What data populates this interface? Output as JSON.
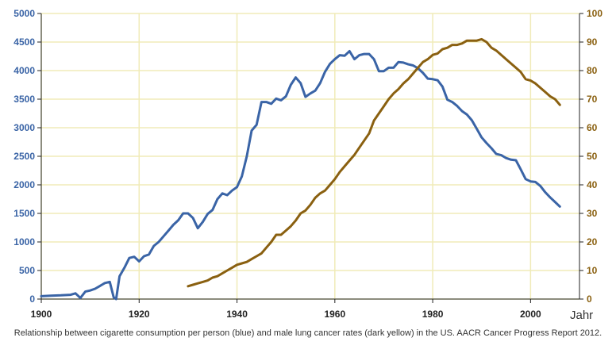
{
  "chart_data": {
    "type": "line",
    "title": "",
    "caption": "Relationship between cigarette consumption per person (blue) and male lung cancer rates (dark yellow) in the US. AACR Cancer Progress Report 2012.",
    "x_unit_label": "Jahr",
    "xlim": [
      1900,
      2010
    ],
    "x_ticks": [
      1900,
      1920,
      1940,
      1960,
      1980,
      2000
    ],
    "y_left": {
      "lim": [
        0,
        5000
      ],
      "ticks": [
        0,
        500,
        1000,
        1500,
        2000,
        2500,
        3000,
        3500,
        4000,
        4500,
        5000
      ],
      "color": "#3a64a6"
    },
    "y_right": {
      "lim": [
        0,
        100
      ],
      "ticks": [
        0,
        10,
        20,
        30,
        40,
        50,
        60,
        70,
        80,
        90,
        100
      ],
      "color": "#8a6010"
    },
    "grid": true,
    "grid_color": "#f0ebb8",
    "axis_color": "#222222",
    "series": [
      {
        "axis": "left",
        "color": "#3a64a6",
        "points": [
          [
            1900,
            50
          ],
          [
            1902,
            60
          ],
          [
            1904,
            65
          ],
          [
            1906,
            75
          ],
          [
            1907,
            100
          ],
          [
            1908,
            20
          ],
          [
            1909,
            130
          ],
          [
            1910,
            150
          ],
          [
            1911,
            180
          ],
          [
            1912,
            230
          ],
          [
            1913,
            280
          ],
          [
            1914,
            300
          ],
          [
            1914.8,
            30
          ],
          [
            1915.3,
            0
          ],
          [
            1916,
            400
          ],
          [
            1917,
            550
          ],
          [
            1918,
            720
          ],
          [
            1919,
            740
          ],
          [
            1920,
            660
          ],
          [
            1921,
            750
          ],
          [
            1922,
            780
          ],
          [
            1923,
            930
          ],
          [
            1924,
            1000
          ],
          [
            1925,
            1100
          ],
          [
            1926,
            1200
          ],
          [
            1927,
            1300
          ],
          [
            1928,
            1380
          ],
          [
            1929,
            1500
          ],
          [
            1930,
            1500
          ],
          [
            1931,
            1420
          ],
          [
            1932,
            1240
          ],
          [
            1933,
            1350
          ],
          [
            1934,
            1490
          ],
          [
            1935,
            1560
          ],
          [
            1936,
            1750
          ],
          [
            1937,
            1850
          ],
          [
            1938,
            1820
          ],
          [
            1939,
            1900
          ],
          [
            1940,
            1960
          ],
          [
            1941,
            2150
          ],
          [
            1942,
            2500
          ],
          [
            1943,
            2950
          ],
          [
            1944,
            3050
          ],
          [
            1945,
            3450
          ],
          [
            1946,
            3450
          ],
          [
            1947,
            3420
          ],
          [
            1948,
            3510
          ],
          [
            1949,
            3480
          ],
          [
            1950,
            3550
          ],
          [
            1951,
            3750
          ],
          [
            1952,
            3880
          ],
          [
            1953,
            3780
          ],
          [
            1954,
            3540
          ],
          [
            1955,
            3600
          ],
          [
            1956,
            3650
          ],
          [
            1957,
            3780
          ],
          [
            1958,
            3980
          ],
          [
            1959,
            4120
          ],
          [
            1960,
            4200
          ],
          [
            1961,
            4270
          ],
          [
            1962,
            4260
          ],
          [
            1963,
            4340
          ],
          [
            1964,
            4200
          ],
          [
            1965,
            4270
          ],
          [
            1966,
            4290
          ],
          [
            1967,
            4290
          ],
          [
            1968,
            4200
          ],
          [
            1969,
            3990
          ],
          [
            1970,
            3990
          ],
          [
            1971,
            4050
          ],
          [
            1972,
            4050
          ],
          [
            1973,
            4150
          ],
          [
            1974,
            4140
          ],
          [
            1975,
            4110
          ],
          [
            1976,
            4090
          ],
          [
            1977,
            4040
          ],
          [
            1978,
            3960
          ],
          [
            1979,
            3860
          ],
          [
            1980,
            3850
          ],
          [
            1981,
            3830
          ],
          [
            1982,
            3720
          ],
          [
            1983,
            3490
          ],
          [
            1984,
            3450
          ],
          [
            1985,
            3380
          ],
          [
            1986,
            3290
          ],
          [
            1987,
            3230
          ],
          [
            1988,
            3130
          ],
          [
            1989,
            2980
          ],
          [
            1990,
            2830
          ],
          [
            1991,
            2730
          ],
          [
            1992,
            2640
          ],
          [
            1993,
            2540
          ],
          [
            1994,
            2520
          ],
          [
            1995,
            2470
          ],
          [
            1996,
            2440
          ],
          [
            1997,
            2430
          ],
          [
            1998,
            2270
          ],
          [
            1999,
            2100
          ],
          [
            2000,
            2060
          ],
          [
            2001,
            2050
          ],
          [
            2002,
            1980
          ],
          [
            2003,
            1870
          ],
          [
            2004,
            1780
          ],
          [
            2005,
            1700
          ],
          [
            2006,
            1620
          ]
        ]
      },
      {
        "axis": "right",
        "color": "#8a6010",
        "points": [
          [
            1930,
            4.5
          ],
          [
            1931,
            5
          ],
          [
            1932,
            5.5
          ],
          [
            1933,
            6
          ],
          [
            1934,
            6.5
          ],
          [
            1935,
            7.5
          ],
          [
            1936,
            8
          ],
          [
            1937,
            9
          ],
          [
            1938,
            10
          ],
          [
            1939,
            11
          ],
          [
            1940,
            12
          ],
          [
            1941,
            12.5
          ],
          [
            1942,
            13
          ],
          [
            1943,
            14
          ],
          [
            1944,
            15
          ],
          [
            1945,
            16
          ],
          [
            1946,
            18
          ],
          [
            1947,
            20
          ],
          [
            1948,
            22.5
          ],
          [
            1949,
            22.5
          ],
          [
            1950,
            24
          ],
          [
            1951,
            25.5
          ],
          [
            1952,
            27.5
          ],
          [
            1953,
            30
          ],
          [
            1954,
            31
          ],
          [
            1955,
            33
          ],
          [
            1956,
            35.5
          ],
          [
            1957,
            37
          ],
          [
            1958,
            38
          ],
          [
            1959,
            40
          ],
          [
            1960,
            42
          ],
          [
            1961,
            44.5
          ],
          [
            1962,
            46.5
          ],
          [
            1963,
            48.5
          ],
          [
            1964,
            50.5
          ],
          [
            1965,
            53
          ],
          [
            1966,
            55.5
          ],
          [
            1967,
            58
          ],
          [
            1968,
            62.5
          ],
          [
            1969,
            65
          ],
          [
            1970,
            67.5
          ],
          [
            1971,
            70
          ],
          [
            1972,
            72
          ],
          [
            1973,
            73.5
          ],
          [
            1974,
            75.5
          ],
          [
            1975,
            77
          ],
          [
            1976,
            79
          ],
          [
            1977,
            81
          ],
          [
            1978,
            83
          ],
          [
            1979,
            84
          ],
          [
            1980,
            85.5
          ],
          [
            1981,
            86
          ],
          [
            1982,
            87.5
          ],
          [
            1983,
            88
          ],
          [
            1984,
            89
          ],
          [
            1985,
            89
          ],
          [
            1986,
            89.5
          ],
          [
            1987,
            90.5
          ],
          [
            1988,
            90.5
          ],
          [
            1989,
            90.5
          ],
          [
            1990,
            91
          ],
          [
            1991,
            90
          ],
          [
            1992,
            88
          ],
          [
            1993,
            87
          ],
          [
            1994,
            85.5
          ],
          [
            1995,
            84
          ],
          [
            1996,
            82.5
          ],
          [
            1997,
            81
          ],
          [
            1998,
            79.5
          ],
          [
            1999,
            77
          ],
          [
            2000,
            76.5
          ],
          [
            2001,
            75.5
          ],
          [
            2002,
            74
          ],
          [
            2003,
            72.5
          ],
          [
            2004,
            71
          ],
          [
            2005,
            70
          ],
          [
            2006,
            68
          ]
        ]
      }
    ]
  }
}
